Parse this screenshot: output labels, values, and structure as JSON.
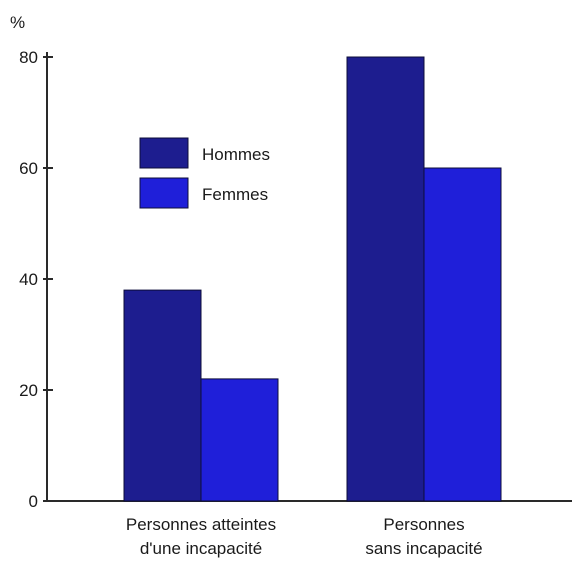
{
  "chart_data": {
    "type": "bar",
    "unit": "%",
    "categories": [
      [
        "Personnes atteintes",
        "d'une incapacité"
      ],
      [
        "Personnes",
        "sans incapacité"
      ]
    ],
    "series": [
      {
        "name": "Hommes",
        "values": [
          38,
          80
        ],
        "color": "#1d1d8f"
      },
      {
        "name": "Femmes",
        "values": [
          22,
          60
        ],
        "color": "#1f1fd9"
      }
    ],
    "ylim": [
      0,
      80
    ],
    "yticks": [
      0,
      20,
      40,
      60,
      80
    ],
    "legend_position": "upper-left",
    "grid": false,
    "axis_color": "#2a2a2a"
  }
}
